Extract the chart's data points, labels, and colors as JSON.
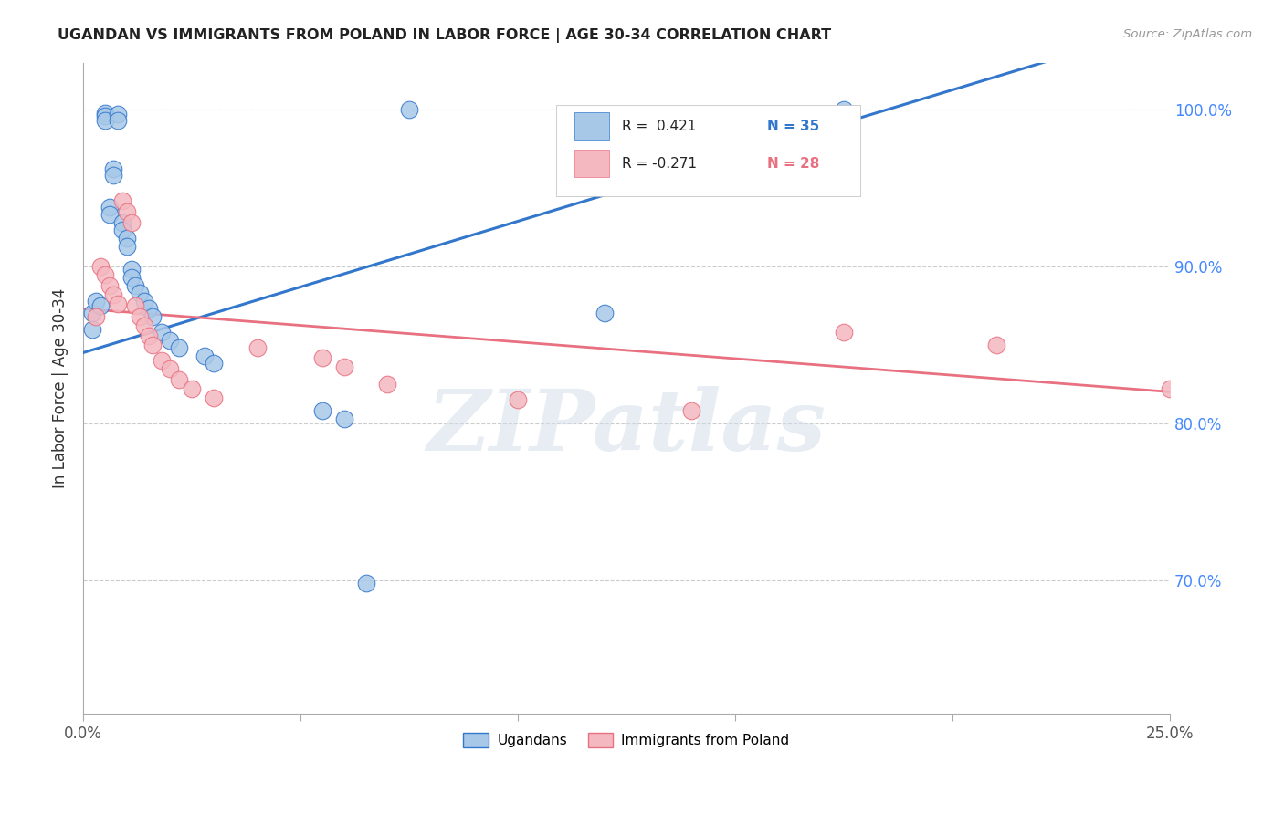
{
  "title": "UGANDAN VS IMMIGRANTS FROM POLAND IN LABOR FORCE | AGE 30-34 CORRELATION CHART",
  "source": "Source: ZipAtlas.com",
  "ylabel": "In Labor Force | Age 30-34",
  "ytick_labels": [
    "70.0%",
    "80.0%",
    "90.0%",
    "100.0%"
  ],
  "ytick_values": [
    0.7,
    0.8,
    0.9,
    1.0
  ],
  "xlim": [
    0.0,
    0.25
  ],
  "ylim": [
    0.615,
    1.03
  ],
  "legend_r_uganda": "R =  0.421",
  "legend_n_uganda": "N = 35",
  "legend_r_poland": "R = -0.271",
  "legend_n_poland": "N = 28",
  "color_uganda": "#a8c8e8",
  "color_poland": "#f4b8c0",
  "color_uganda_line": "#3377cc",
  "color_poland_line": "#e87080",
  "watermark_text": "ZIPatlas",
  "ugandan_x": [
    0.002,
    0.002,
    0.003,
    0.004,
    0.005,
    0.005,
    0.005,
    0.006,
    0.006,
    0.007,
    0.007,
    0.008,
    0.008,
    0.009,
    0.009,
    0.01,
    0.01,
    0.011,
    0.011,
    0.012,
    0.013,
    0.014,
    0.015,
    0.016,
    0.018,
    0.02,
    0.022,
    0.028,
    0.03,
    0.055,
    0.06,
    0.065,
    0.075,
    0.12,
    0.175
  ],
  "ugandan_y": [
    0.87,
    0.86,
    0.878,
    0.875,
    0.998,
    0.996,
    0.993,
    0.938,
    0.933,
    0.962,
    0.958,
    0.997,
    0.993,
    0.928,
    0.923,
    0.918,
    0.913,
    0.898,
    0.893,
    0.888,
    0.883,
    0.878,
    0.873,
    0.868,
    0.858,
    0.853,
    0.848,
    0.843,
    0.838,
    0.808,
    0.803,
    0.698,
    1.0,
    0.87,
    1.0
  ],
  "poland_x": [
    0.003,
    0.004,
    0.005,
    0.006,
    0.007,
    0.008,
    0.009,
    0.01,
    0.011,
    0.012,
    0.013,
    0.014,
    0.015,
    0.016,
    0.018,
    0.02,
    0.022,
    0.025,
    0.03,
    0.04,
    0.055,
    0.06,
    0.07,
    0.1,
    0.14,
    0.175,
    0.21,
    0.25
  ],
  "poland_y": [
    0.868,
    0.9,
    0.895,
    0.888,
    0.882,
    0.876,
    0.942,
    0.935,
    0.928,
    0.875,
    0.868,
    0.862,
    0.856,
    0.85,
    0.84,
    0.835,
    0.828,
    0.822,
    0.816,
    0.848,
    0.842,
    0.836,
    0.825,
    0.815,
    0.808,
    0.858,
    0.85,
    0.822
  ],
  "background_color": "#ffffff",
  "grid_color": "#cccccc"
}
